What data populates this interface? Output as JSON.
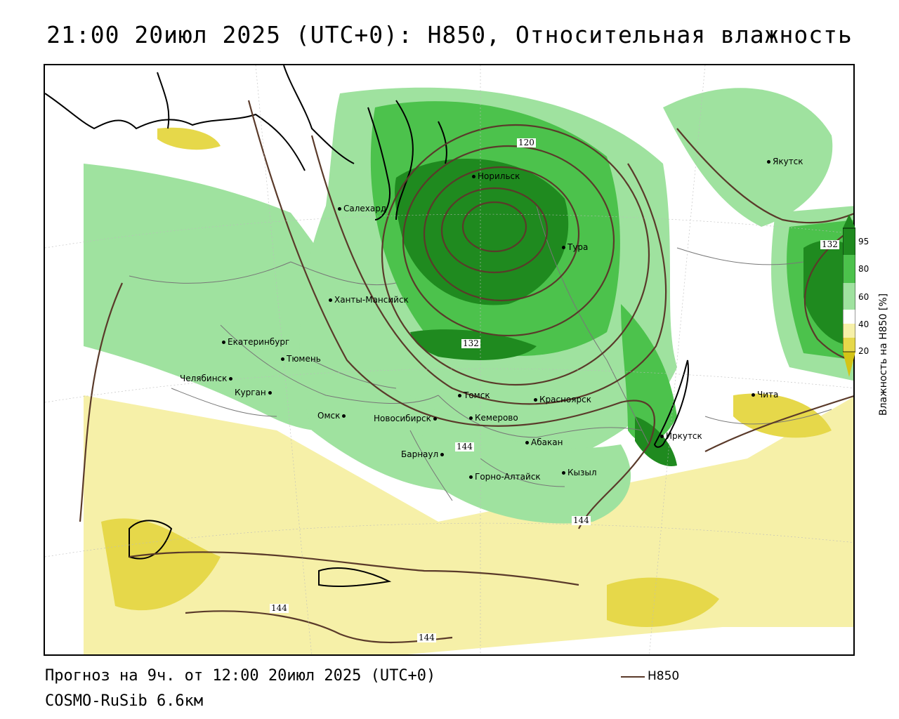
{
  "title": "21:00 20июл 2025 (UTC+0): H850, Относительная влажность",
  "footer": {
    "forecast": "Прогноз на 9ч. от 12:00 20июл 2025 (UTC+0)",
    "model": "COSMO-RuSib 6.6км"
  },
  "legend": {
    "line_label": "H850",
    "line_color": "#5a3a2a"
  },
  "colorbar": {
    "title": "Влажность на H850 [%]",
    "ticks": [
      "95",
      "80",
      "60",
      "40",
      "20"
    ],
    "colors": [
      "#1f8a1f",
      "#4cc24c",
      "#9fe29f",
      "#ffffff",
      "#f6f0a8",
      "#e6d84a",
      "#d4c416"
    ]
  },
  "isoline_labels": [
    "120",
    "132",
    "132",
    "144",
    "144",
    "144",
    "144"
  ],
  "cities": [
    "Якутск",
    "Норильск",
    "Салехард",
    "Тура",
    "Ханты-Мансийск",
    "Екатеринбург",
    "Тюмень",
    "Челябинск",
    "Курган",
    "Омск",
    "Новосибирск",
    "Томск",
    "Красноярск",
    "Кемерово",
    "Барнаул",
    "Абакан",
    "Иркутск",
    "Кызыл",
    "Горно-Алтайск",
    "Чита"
  ]
}
